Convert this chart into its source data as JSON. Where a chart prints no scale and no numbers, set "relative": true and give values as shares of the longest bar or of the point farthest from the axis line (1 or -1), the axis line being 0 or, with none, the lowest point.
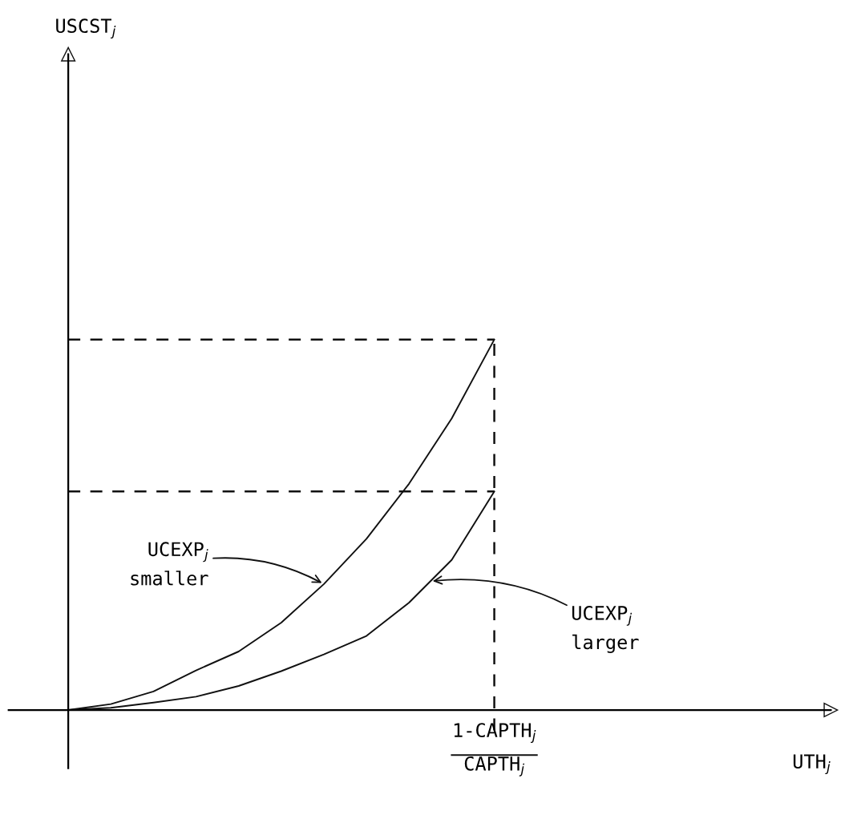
{
  "chart_data": {
    "type": "line",
    "relative": true,
    "marker": "none",
    "line_style": "solid",
    "categories": [
      null,
      null,
      null,
      null,
      null,
      null,
      null,
      null,
      null,
      null,
      "1-CAPTH$_{j}$\nCAPTH$_{j}$"
    ],
    "series": [
      {
        "color": "#111111",
        "values": [
          0,
          0.016,
          0.05,
          0.107,
          0.158,
          0.236,
          0.34,
          0.462,
          0.611,
          0.787,
          1
        ]
      },
      {
        "color": "#111111",
        "values": [
          0,
          0.006,
          0.02,
          0.036,
          0.065,
          0.105,
          0.15,
          0.2,
          0.29,
          0.405,
          0.59
        ]
      }
    ],
    "ref_lines": [
      {
        "axis": "y",
        "value": 1,
        "line_style": "dashed",
        "color": "#111111"
      },
      {
        "axis": "y",
        "value": 0.59,
        "line_style": "dashed",
        "color": "#111111"
      },
      {
        "axis": "x",
        "value": "1-CAPTH$_{j}$\nCAPTH$_{j}$",
        "line_style": "dashed",
        "color": "#111111"
      }
    ],
    "annotations": [
      "UCEXP$_{j}$\nsmaller",
      "UCEXP$_{j}$\nlarger",
      "USCST$_{j}$",
      "UTH$_{j}$"
    ]
  }
}
